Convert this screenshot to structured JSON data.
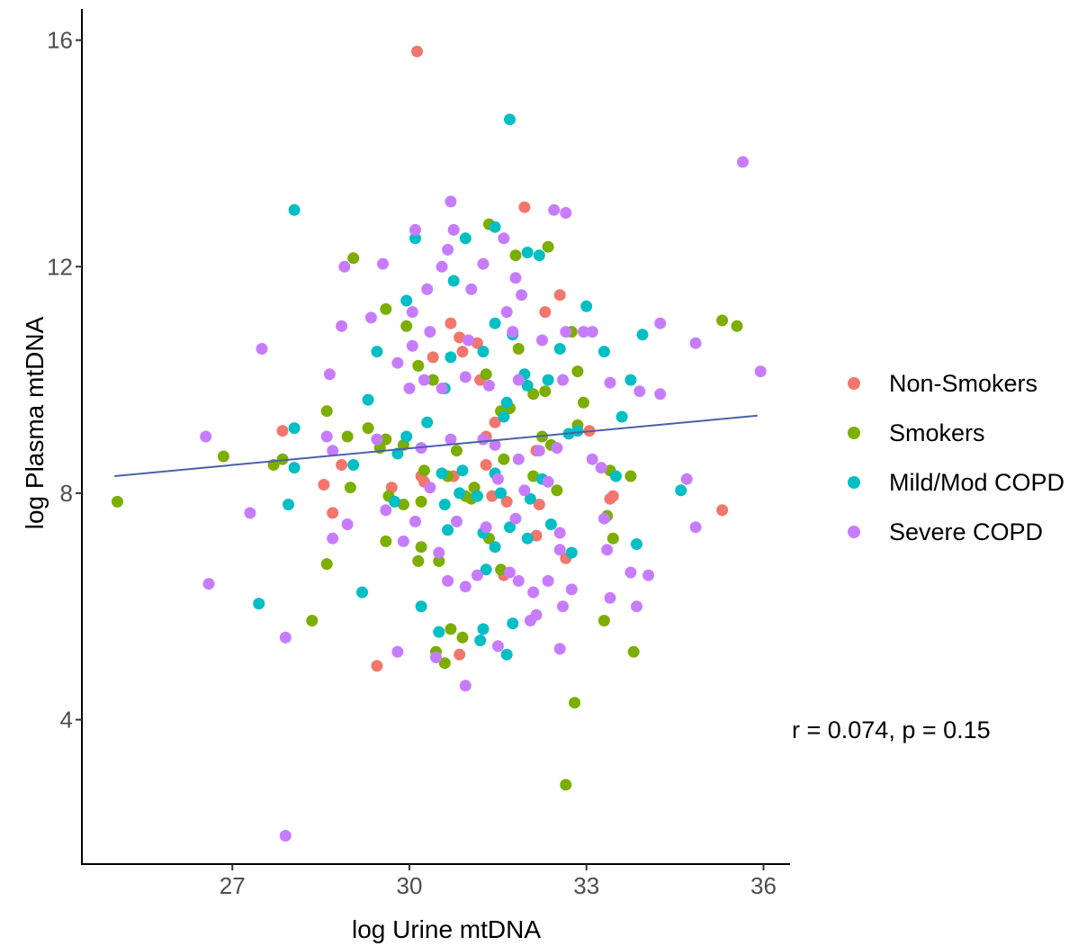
{
  "chart_data": {
    "type": "scatter",
    "title": "",
    "xlabel": "log Urine mtDNA",
    "ylabel": "log Plasma mtDNA",
    "xlim": [
      24.45,
      36.45
    ],
    "ylim": [
      1.45,
      16.55
    ],
    "x_ticks": [
      "27",
      "30",
      "33",
      "36"
    ],
    "y_ticks": [
      "4",
      "8",
      "12",
      "16"
    ],
    "x_tick_values": [
      27,
      30,
      33,
      36
    ],
    "y_tick_values": [
      4,
      8,
      12,
      16
    ],
    "grid": false,
    "legend_position": "right",
    "annotation": "r = 0.074, p = 0.15",
    "fit_line": {
      "x": [
        25.0,
        35.9
      ],
      "y": [
        8.3,
        9.37
      ],
      "color": "#4a61a8"
    },
    "series": [
      {
        "name": "Non-Smokers",
        "color": "#f2766b",
        "points": [
          [
            30.13,
            15.8
          ],
          [
            31.95,
            13.05
          ],
          [
            32.55,
            11.5
          ],
          [
            32.3,
            11.2
          ],
          [
            30.7,
            11.0
          ],
          [
            30.85,
            10.75
          ],
          [
            31.15,
            10.65
          ],
          [
            30.4,
            10.4
          ],
          [
            30.9,
            10.5
          ],
          [
            31.2,
            10.0
          ],
          [
            30.25,
            8.2
          ],
          [
            32.85,
            9.1
          ],
          [
            33.05,
            9.1
          ],
          [
            31.45,
            9.25
          ],
          [
            32.15,
            8.75
          ],
          [
            31.3,
            8.5
          ],
          [
            30.75,
            8.3
          ],
          [
            28.85,
            8.5
          ],
          [
            28.55,
            8.15
          ],
          [
            28.7,
            7.65
          ],
          [
            29.7,
            8.1
          ],
          [
            30.2,
            8.3
          ],
          [
            31.4,
            7.95
          ],
          [
            31.65,
            7.85
          ],
          [
            32.2,
            7.8
          ],
          [
            32.15,
            7.25
          ],
          [
            31.6,
            6.55
          ],
          [
            32.65,
            6.85
          ],
          [
            33.4,
            7.9
          ],
          [
            33.45,
            7.95
          ],
          [
            35.3,
            7.7
          ],
          [
            30.85,
            5.15
          ],
          [
            29.45,
            4.95
          ],
          [
            27.85,
            9.1
          ],
          [
            31.3,
            9.0
          ]
        ]
      },
      {
        "name": "Smokers",
        "color": "#7cae00",
        "points": [
          [
            31.35,
            12.75
          ],
          [
            32.35,
            12.35
          ],
          [
            31.8,
            12.2
          ],
          [
            29.05,
            12.15
          ],
          [
            29.6,
            11.25
          ],
          [
            29.95,
            10.95
          ],
          [
            30.15,
            10.25
          ],
          [
            30.4,
            10.0
          ],
          [
            31.3,
            10.1
          ],
          [
            32.3,
            9.8
          ],
          [
            32.1,
            9.75
          ],
          [
            32.85,
            10.15
          ],
          [
            32.75,
            10.85
          ],
          [
            31.85,
            10.55
          ],
          [
            31.7,
            9.5
          ],
          [
            32.95,
            9.6
          ],
          [
            32.85,
            9.2
          ],
          [
            32.25,
            9.0
          ],
          [
            32.4,
            8.85
          ],
          [
            33.4,
            8.4
          ],
          [
            33.75,
            8.3
          ],
          [
            31.55,
            9.45
          ],
          [
            30.8,
            8.75
          ],
          [
            28.6,
            9.45
          ],
          [
            28.95,
            9.0
          ],
          [
            29.3,
            9.15
          ],
          [
            29.5,
            8.8
          ],
          [
            29.9,
            8.85
          ],
          [
            29.6,
            8.95
          ],
          [
            27.85,
            8.6
          ],
          [
            26.85,
            8.65
          ],
          [
            27.7,
            8.5
          ],
          [
            30.25,
            8.4
          ],
          [
            30.65,
            8.3
          ],
          [
            31.1,
            8.1
          ],
          [
            30.95,
            7.95
          ],
          [
            31.05,
            7.9
          ],
          [
            30.2,
            7.85
          ],
          [
            29.65,
            7.95
          ],
          [
            29.9,
            7.8
          ],
          [
            29.0,
            8.1
          ],
          [
            32.5,
            8.05
          ],
          [
            31.55,
            6.65
          ],
          [
            31.35,
            7.2
          ],
          [
            30.5,
            6.8
          ],
          [
            30.15,
            6.8
          ],
          [
            30.2,
            7.05
          ],
          [
            29.6,
            7.15
          ],
          [
            28.6,
            6.75
          ],
          [
            28.35,
            5.75
          ],
          [
            33.35,
            7.6
          ],
          [
            33.45,
            7.2
          ],
          [
            33.3,
            5.75
          ],
          [
            33.8,
            5.2
          ],
          [
            30.7,
            5.6
          ],
          [
            30.9,
            5.45
          ],
          [
            30.45,
            5.2
          ],
          [
            30.6,
            5.0
          ],
          [
            32.8,
            4.3
          ],
          [
            32.65,
            2.85
          ],
          [
            25.05,
            7.85
          ],
          [
            35.55,
            10.95
          ],
          [
            35.3,
            11.05
          ],
          [
            31.6,
            8.6
          ],
          [
            32.1,
            8.3
          ]
        ]
      },
      {
        "name": "Mild/Mod COPD",
        "color": "#00bfc4",
        "points": [
          [
            31.7,
            14.6
          ],
          [
            28.05,
            13.0
          ],
          [
            31.45,
            12.7
          ],
          [
            30.1,
            12.5
          ],
          [
            30.95,
            12.5
          ],
          [
            32.0,
            12.25
          ],
          [
            32.2,
            12.2
          ],
          [
            30.75,
            11.75
          ],
          [
            29.95,
            11.4
          ],
          [
            33.0,
            11.3
          ],
          [
            31.45,
            11.0
          ],
          [
            31.75,
            10.8
          ],
          [
            30.7,
            10.4
          ],
          [
            31.25,
            10.5
          ],
          [
            32.55,
            10.55
          ],
          [
            33.3,
            10.5
          ],
          [
            33.95,
            10.8
          ],
          [
            29.45,
            10.5
          ],
          [
            31.95,
            10.1
          ],
          [
            32.35,
            10.0
          ],
          [
            32.0,
            9.9
          ],
          [
            33.75,
            10.0
          ],
          [
            29.3,
            9.65
          ],
          [
            30.6,
            9.85
          ],
          [
            31.65,
            9.6
          ],
          [
            31.6,
            9.35
          ],
          [
            32.85,
            9.1
          ],
          [
            33.6,
            9.35
          ],
          [
            30.3,
            9.25
          ],
          [
            29.95,
            9.0
          ],
          [
            32.7,
            9.05
          ],
          [
            28.05,
            9.15
          ],
          [
            28.05,
            8.45
          ],
          [
            29.05,
            8.5
          ],
          [
            29.8,
            8.7
          ],
          [
            30.55,
            8.35
          ],
          [
            30.9,
            8.4
          ],
          [
            31.45,
            8.35
          ],
          [
            32.25,
            8.25
          ],
          [
            33.5,
            8.3
          ],
          [
            34.6,
            8.05
          ],
          [
            30.6,
            7.8
          ],
          [
            30.85,
            8.0
          ],
          [
            31.15,
            7.95
          ],
          [
            31.55,
            8.0
          ],
          [
            32.05,
            7.9
          ],
          [
            32.4,
            7.45
          ],
          [
            31.7,
            7.4
          ],
          [
            30.65,
            7.35
          ],
          [
            31.25,
            7.3
          ],
          [
            31.45,
            7.05
          ],
          [
            32.0,
            7.2
          ],
          [
            32.75,
            6.95
          ],
          [
            33.85,
            7.1
          ],
          [
            29.75,
            7.85
          ],
          [
            31.3,
            6.65
          ],
          [
            30.2,
            6.0
          ],
          [
            29.2,
            6.25
          ],
          [
            27.45,
            6.05
          ],
          [
            30.5,
            5.55
          ],
          [
            31.25,
            5.6
          ],
          [
            31.2,
            5.4
          ],
          [
            31.75,
            5.7
          ],
          [
            31.65,
            5.15
          ],
          [
            27.95,
            7.8
          ]
        ]
      },
      {
        "name": "Severe COPD",
        "color": "#c77cff",
        "points": [
          [
            35.65,
            13.85
          ],
          [
            30.7,
            13.15
          ],
          [
            32.45,
            13.0
          ],
          [
            32.65,
            12.95
          ],
          [
            30.1,
            12.65
          ],
          [
            30.75,
            12.65
          ],
          [
            31.6,
            12.5
          ],
          [
            30.65,
            12.3
          ],
          [
            29.55,
            12.05
          ],
          [
            28.9,
            12.0
          ],
          [
            30.55,
            12.0
          ],
          [
            31.25,
            12.05
          ],
          [
            31.8,
            11.8
          ],
          [
            30.3,
            11.6
          ],
          [
            31.05,
            11.6
          ],
          [
            31.9,
            11.5
          ],
          [
            29.35,
            11.1
          ],
          [
            30.05,
            11.2
          ],
          [
            31.65,
            11.2
          ],
          [
            28.85,
            10.95
          ],
          [
            30.35,
            10.85
          ],
          [
            30.05,
            10.6
          ],
          [
            31.0,
            10.7
          ],
          [
            31.75,
            10.85
          ],
          [
            32.25,
            10.7
          ],
          [
            32.65,
            10.85
          ],
          [
            32.95,
            10.85
          ],
          [
            33.1,
            10.85
          ],
          [
            34.25,
            11.0
          ],
          [
            34.85,
            10.65
          ],
          [
            26.55,
            9.0
          ],
          [
            27.5,
            10.55
          ],
          [
            28.65,
            10.1
          ],
          [
            29.8,
            10.3
          ],
          [
            30.0,
            9.85
          ],
          [
            30.25,
            10.0
          ],
          [
            30.55,
            9.85
          ],
          [
            30.95,
            10.05
          ],
          [
            31.35,
            9.9
          ],
          [
            31.85,
            10.0
          ],
          [
            32.6,
            10.0
          ],
          [
            33.4,
            9.95
          ],
          [
            33.9,
            9.8
          ],
          [
            34.25,
            9.75
          ],
          [
            35.95,
            10.15
          ],
          [
            28.6,
            9.0
          ],
          [
            28.7,
            8.75
          ],
          [
            29.45,
            8.95
          ],
          [
            30.2,
            8.8
          ],
          [
            30.7,
            8.95
          ],
          [
            31.45,
            8.85
          ],
          [
            31.85,
            8.6
          ],
          [
            32.2,
            8.75
          ],
          [
            32.5,
            8.8
          ],
          [
            33.1,
            8.6
          ],
          [
            33.25,
            8.45
          ],
          [
            34.7,
            8.25
          ],
          [
            27.3,
            7.65
          ],
          [
            28.95,
            7.45
          ],
          [
            29.6,
            7.7
          ],
          [
            30.1,
            7.5
          ],
          [
            30.8,
            7.5
          ],
          [
            31.3,
            7.4
          ],
          [
            31.8,
            7.55
          ],
          [
            32.55,
            7.3
          ],
          [
            33.3,
            7.55
          ],
          [
            34.85,
            7.4
          ],
          [
            28.7,
            7.2
          ],
          [
            29.9,
            7.15
          ],
          [
            30.5,
            6.95
          ],
          [
            31.15,
            6.55
          ],
          [
            31.85,
            6.45
          ],
          [
            32.35,
            6.45
          ],
          [
            32.55,
            7.0
          ],
          [
            33.35,
            7.0
          ],
          [
            33.75,
            6.6
          ],
          [
            34.05,
            6.55
          ],
          [
            26.6,
            6.4
          ],
          [
            30.65,
            6.45
          ],
          [
            30.95,
            6.35
          ],
          [
            31.7,
            6.6
          ],
          [
            32.1,
            6.25
          ],
          [
            32.75,
            6.3
          ],
          [
            33.4,
            6.15
          ],
          [
            33.85,
            6.0
          ],
          [
            27.9,
            5.45
          ],
          [
            29.8,
            5.2
          ],
          [
            30.45,
            5.1
          ],
          [
            31.5,
            5.3
          ],
          [
            32.55,
            5.25
          ],
          [
            30.95,
            4.6
          ],
          [
            27.9,
            1.95
          ],
          [
            32.15,
            5.85
          ],
          [
            32.05,
            5.75
          ],
          [
            32.6,
            6.0
          ],
          [
            31.5,
            8.25
          ],
          [
            31.95,
            8.05
          ],
          [
            32.35,
            8.2
          ],
          [
            30.35,
            8.1
          ],
          [
            31.25,
            8.95
          ]
        ]
      }
    ]
  }
}
